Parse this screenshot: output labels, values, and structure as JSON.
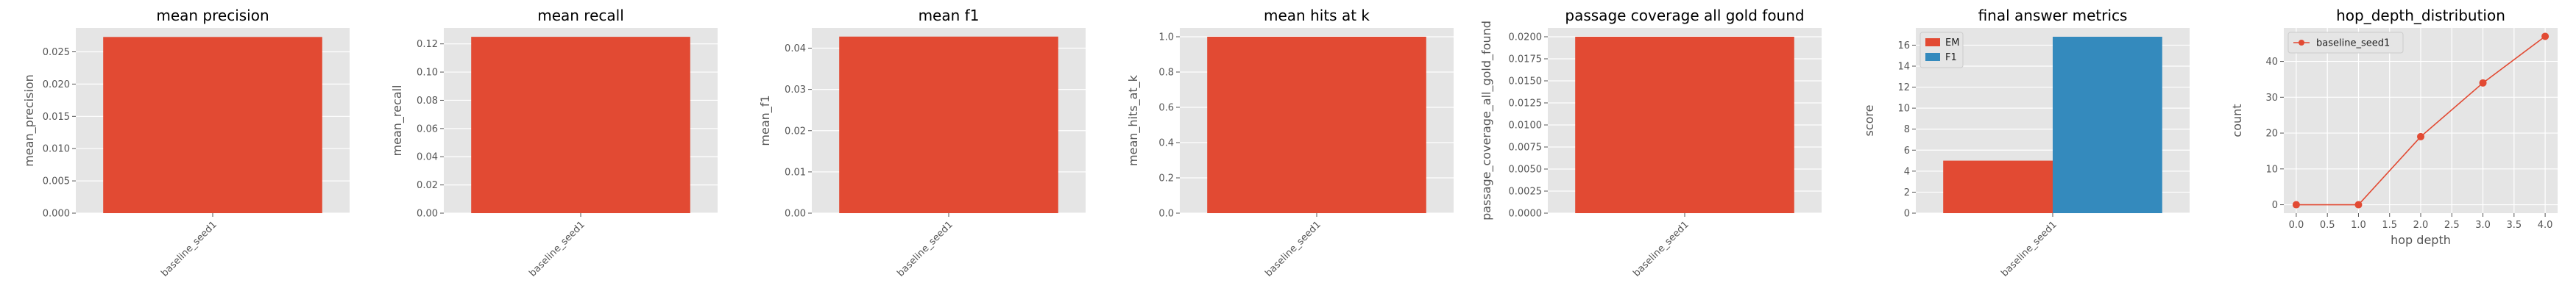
{
  "palette": {
    "red": "#E24A33",
    "blue": "#348ABD"
  },
  "chart_data": [
    {
      "type": "bar",
      "title": "mean precision",
      "ylabel": "mean_precision",
      "categories": [
        "baseline_seed1"
      ],
      "values": [
        0.0273
      ],
      "ylim": [
        0,
        0.0287
      ],
      "yticks": [
        0,
        0.005,
        0.01,
        0.015,
        0.02,
        0.025
      ],
      "ytick_labels": [
        "0.000",
        "0.005",
        "0.010",
        "0.015",
        "0.020",
        "0.025"
      ],
      "grid": true
    },
    {
      "type": "bar",
      "title": "mean recall",
      "ylabel": "mean_recall",
      "categories": [
        "baseline_seed1"
      ],
      "values": [
        0.125
      ],
      "ylim": [
        0,
        0.1313
      ],
      "yticks": [
        0,
        0.02,
        0.04,
        0.06,
        0.08,
        0.1,
        0.12
      ],
      "ytick_labels": [
        "0.00",
        "0.02",
        "0.04",
        "0.06",
        "0.08",
        "0.10",
        "0.12"
      ],
      "grid": true
    },
    {
      "type": "bar",
      "title": "mean f1",
      "ylabel": "mean_f1",
      "categories": [
        "baseline_seed1"
      ],
      "values": [
        0.0428
      ],
      "ylim": [
        0,
        0.0449
      ],
      "yticks": [
        0,
        0.01,
        0.02,
        0.03,
        0.04
      ],
      "ytick_labels": [
        "0.00",
        "0.01",
        "0.02",
        "0.03",
        "0.04"
      ],
      "grid": true
    },
    {
      "type": "bar",
      "title": "mean hits at k",
      "ylabel": "mean_hits_at_k",
      "categories": [
        "baseline_seed1"
      ],
      "values": [
        1.0
      ],
      "ylim": [
        0,
        1.05
      ],
      "yticks": [
        0,
        0.2,
        0.4,
        0.6,
        0.8,
        1.0
      ],
      "ytick_labels": [
        "0.0",
        "0.2",
        "0.4",
        "0.6",
        "0.8",
        "1.0"
      ],
      "grid": true
    },
    {
      "type": "bar",
      "title": "passage coverage all gold found",
      "ylabel": "passage_coverage_all_gold_found",
      "categories": [
        "baseline_seed1"
      ],
      "values": [
        0.02
      ],
      "ylim": [
        0,
        0.021
      ],
      "yticks": [
        0,
        0.0025,
        0.005,
        0.0075,
        0.01,
        0.0125,
        0.015,
        0.0175,
        0.02
      ],
      "ytick_labels": [
        "0.0000",
        "0.0025",
        "0.0050",
        "0.0075",
        "0.0100",
        "0.0125",
        "0.0150",
        "0.0175",
        "0.0200"
      ],
      "grid": true
    },
    {
      "type": "bar",
      "title": "final answer metrics",
      "ylabel": "score",
      "categories": [
        "baseline_seed1"
      ],
      "series": [
        {
          "name": "EM",
          "values": [
            5.0
          ],
          "color": "#E24A33"
        },
        {
          "name": "F1",
          "values": [
            16.8
          ],
          "color": "#348ABD"
        }
      ],
      "ylim": [
        0,
        17.64
      ],
      "yticks": [
        0,
        2,
        4,
        6,
        8,
        10,
        12,
        14,
        16
      ],
      "ytick_labels": [
        "0",
        "2",
        "4",
        "6",
        "8",
        "10",
        "12",
        "14",
        "16"
      ],
      "legend": "top-left",
      "grid": true
    },
    {
      "type": "line",
      "title": "hop_depth_distribution",
      "xlabel": "hop depth",
      "ylabel": "count",
      "series": [
        {
          "name": "baseline_seed1",
          "x": [
            0,
            1,
            2,
            3,
            4
          ],
          "y": [
            0,
            0,
            19,
            34,
            47
          ],
          "color": "#E24A33"
        }
      ],
      "xlim": [
        -0.2,
        4.2
      ],
      "ylim": [
        -2.35,
        49.35
      ],
      "xticks": [
        0,
        0.5,
        1,
        1.5,
        2,
        2.5,
        3,
        3.5,
        4
      ],
      "xtick_labels": [
        "0.0",
        "0.5",
        "1.0",
        "1.5",
        "2.0",
        "2.5",
        "3.0",
        "3.5",
        "4.0"
      ],
      "yticks": [
        0,
        10,
        20,
        30,
        40
      ],
      "ytick_labels": [
        "0",
        "10",
        "20",
        "30",
        "40"
      ],
      "legend": "top-left",
      "grid": true
    }
  ]
}
